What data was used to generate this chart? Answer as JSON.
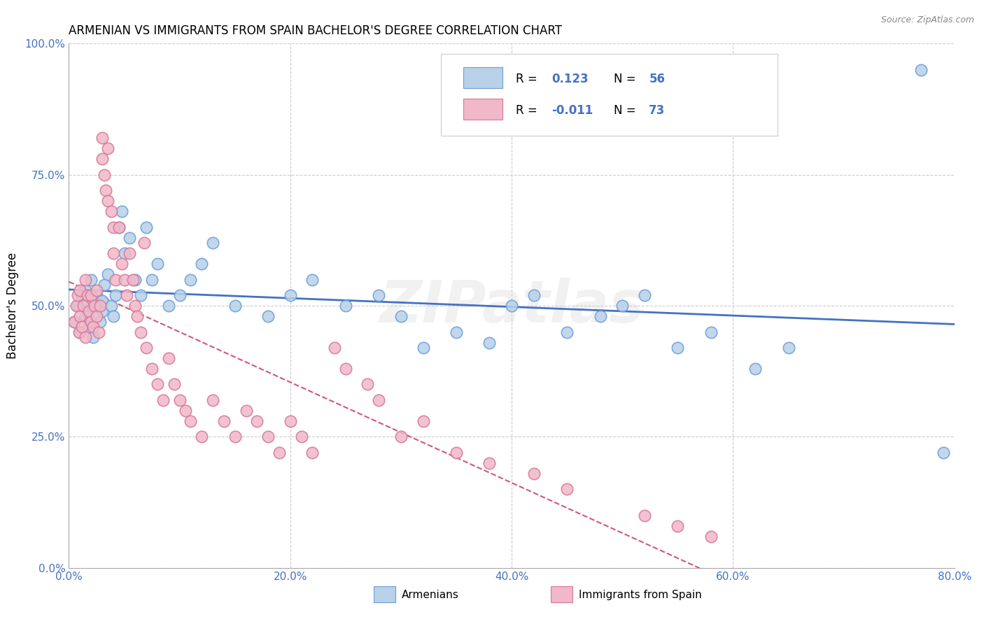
{
  "title": "ARMENIAN VS IMMIGRANTS FROM SPAIN BACHELOR'S DEGREE CORRELATION CHART",
  "source": "Source: ZipAtlas.com",
  "ylabel": "Bachelor's Degree",
  "xlim": [
    0.0,
    0.8
  ],
  "ylim": [
    0.0,
    1.0
  ],
  "xlabel_vals": [
    0.0,
    0.2,
    0.4,
    0.6,
    0.8
  ],
  "xlabel_ticks": [
    "0.0%",
    "20.0%",
    "40.0%",
    "60.0%",
    "80.0%"
  ],
  "ylabel_vals": [
    0.0,
    0.25,
    0.5,
    0.75,
    1.0
  ],
  "ylabel_ticks": [
    "0.0%",
    "25.0%",
    "50.0%",
    "75.0%",
    "100.0%"
  ],
  "R_armenian": 0.123,
  "N_armenian": 56,
  "R_spain": -0.011,
  "N_spain": 73,
  "armenian_fill": "#b8d0e8",
  "armenian_edge": "#6a9fd8",
  "spain_fill": "#f0b8c8",
  "spain_edge": "#d87898",
  "armenian_line_color": "#4472c4",
  "spain_line_color": "#d05878",
  "watermark": "ZIPatlas",
  "legend_armenian": "Armenians",
  "legend_spain": "Immigrants from Spain",
  "arm_x": [
    0.005,
    0.008,
    0.01,
    0.012,
    0.015,
    0.015,
    0.018,
    0.02,
    0.02,
    0.022,
    0.025,
    0.025,
    0.028,
    0.03,
    0.03,
    0.032,
    0.035,
    0.038,
    0.04,
    0.042,
    0.045,
    0.048,
    0.05,
    0.055,
    0.06,
    0.065,
    0.07,
    0.075,
    0.08,
    0.09,
    0.1,
    0.11,
    0.12,
    0.13,
    0.15,
    0.18,
    0.2,
    0.22,
    0.25,
    0.28,
    0.3,
    0.32,
    0.35,
    0.38,
    0.4,
    0.42,
    0.45,
    0.48,
    0.5,
    0.52,
    0.55,
    0.58,
    0.62,
    0.65,
    0.77,
    0.79
  ],
  "arm_y": [
    0.47,
    0.5,
    0.45,
    0.52,
    0.48,
    0.53,
    0.46,
    0.5,
    0.55,
    0.44,
    0.5,
    0.52,
    0.47,
    0.49,
    0.51,
    0.54,
    0.56,
    0.5,
    0.48,
    0.52,
    0.65,
    0.68,
    0.6,
    0.63,
    0.55,
    0.52,
    0.65,
    0.55,
    0.58,
    0.5,
    0.52,
    0.55,
    0.58,
    0.62,
    0.5,
    0.48,
    0.52,
    0.55,
    0.5,
    0.52,
    0.48,
    0.42,
    0.45,
    0.43,
    0.5,
    0.52,
    0.45,
    0.48,
    0.5,
    0.52,
    0.42,
    0.45,
    0.38,
    0.42,
    0.95,
    0.22
  ],
  "spa_x": [
    0.005,
    0.007,
    0.008,
    0.009,
    0.01,
    0.01,
    0.012,
    0.013,
    0.015,
    0.015,
    0.017,
    0.018,
    0.02,
    0.02,
    0.022,
    0.023,
    0.025,
    0.025,
    0.027,
    0.028,
    0.03,
    0.03,
    0.032,
    0.033,
    0.035,
    0.035,
    0.038,
    0.04,
    0.04,
    0.042,
    0.045,
    0.048,
    0.05,
    0.052,
    0.055,
    0.058,
    0.06,
    0.062,
    0.065,
    0.068,
    0.07,
    0.075,
    0.08,
    0.085,
    0.09,
    0.095,
    0.1,
    0.105,
    0.11,
    0.12,
    0.13,
    0.14,
    0.15,
    0.16,
    0.17,
    0.18,
    0.19,
    0.2,
    0.21,
    0.22,
    0.24,
    0.25,
    0.27,
    0.28,
    0.3,
    0.32,
    0.35,
    0.38,
    0.42,
    0.45,
    0.52,
    0.55,
    0.58
  ],
  "spa_y": [
    0.47,
    0.5,
    0.52,
    0.45,
    0.48,
    0.53,
    0.46,
    0.5,
    0.55,
    0.44,
    0.52,
    0.49,
    0.47,
    0.52,
    0.46,
    0.5,
    0.48,
    0.53,
    0.45,
    0.5,
    0.78,
    0.82,
    0.75,
    0.72,
    0.7,
    0.8,
    0.68,
    0.65,
    0.6,
    0.55,
    0.65,
    0.58,
    0.55,
    0.52,
    0.6,
    0.55,
    0.5,
    0.48,
    0.45,
    0.62,
    0.42,
    0.38,
    0.35,
    0.32,
    0.4,
    0.35,
    0.32,
    0.3,
    0.28,
    0.25,
    0.32,
    0.28,
    0.25,
    0.3,
    0.28,
    0.25,
    0.22,
    0.28,
    0.25,
    0.22,
    0.42,
    0.38,
    0.35,
    0.32,
    0.25,
    0.28,
    0.22,
    0.2,
    0.18,
    0.15,
    0.1,
    0.08,
    0.06
  ]
}
